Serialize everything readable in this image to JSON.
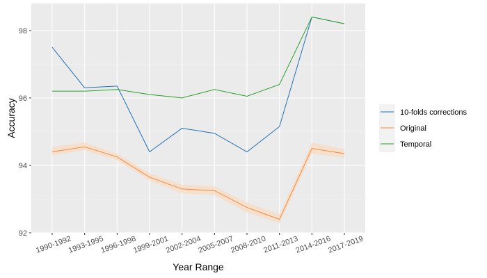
{
  "chart_data": {
    "type": "line",
    "title": "",
    "xlabel": "Year Range",
    "ylabel": "Accuracy",
    "categories": [
      "1990-1992",
      "1993-1995",
      "1996-1998",
      "1999-2001",
      "2002-2004",
      "2005-2007",
      "2008-2010",
      "2011-2013",
      "2014-2016",
      "2017-2019"
    ],
    "ylim": [
      92,
      98.8
    ],
    "yticks": [
      92,
      94,
      96,
      98
    ],
    "grid": true,
    "legend_position": "right",
    "series": [
      {
        "name": "10-folds corrections",
        "color": "#1f6fb5",
        "values": [
          97.5,
          96.3,
          96.35,
          94.4,
          95.1,
          94.95,
          94.4,
          95.15,
          98.4,
          98.2
        ]
      },
      {
        "name": "Original",
        "color": "#f58a3d",
        "band_color": "#f7ddc8",
        "values": [
          94.4,
          94.55,
          94.25,
          93.65,
          93.3,
          93.25,
          92.75,
          92.4,
          94.5,
          94.35
        ],
        "lower": [
          94.3,
          94.45,
          94.15,
          93.55,
          93.17,
          93.12,
          92.6,
          92.28,
          94.35,
          94.22
        ],
        "upper": [
          94.55,
          94.68,
          94.35,
          93.77,
          93.43,
          93.38,
          92.9,
          92.55,
          94.67,
          94.48
        ]
      },
      {
        "name": "Temporal",
        "color": "#2ca02c",
        "values": [
          96.2,
          96.2,
          96.25,
          96.1,
          96.0,
          96.25,
          96.05,
          96.4,
          98.4,
          98.2
        ]
      }
    ]
  }
}
